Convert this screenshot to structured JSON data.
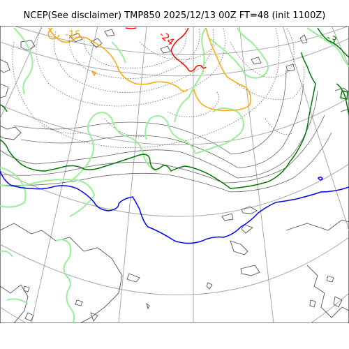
{
  "title": "NCEP(See disclaimer) TMP850 2025/12/13 00Z FT=48 (init 1100Z)",
  "colors": {
    "background": "#ffffff",
    "graticule": "#a8a8a8",
    "coastline": "#555555",
    "isotherm_minor": "#666666",
    "zero_line": "#0000ff",
    "minus6_line": "#007700",
    "cold_line": "#99ee99",
    "orange_line": "#ffa500",
    "red_line": "#ff0000"
  },
  "contour_labels": [
    {
      "text": "-15",
      "color": "#ffa500"
    },
    {
      "text": "-24",
      "color": "#ff0000"
    },
    {
      "text": "-3",
      "color": "#007700"
    }
  ]
}
